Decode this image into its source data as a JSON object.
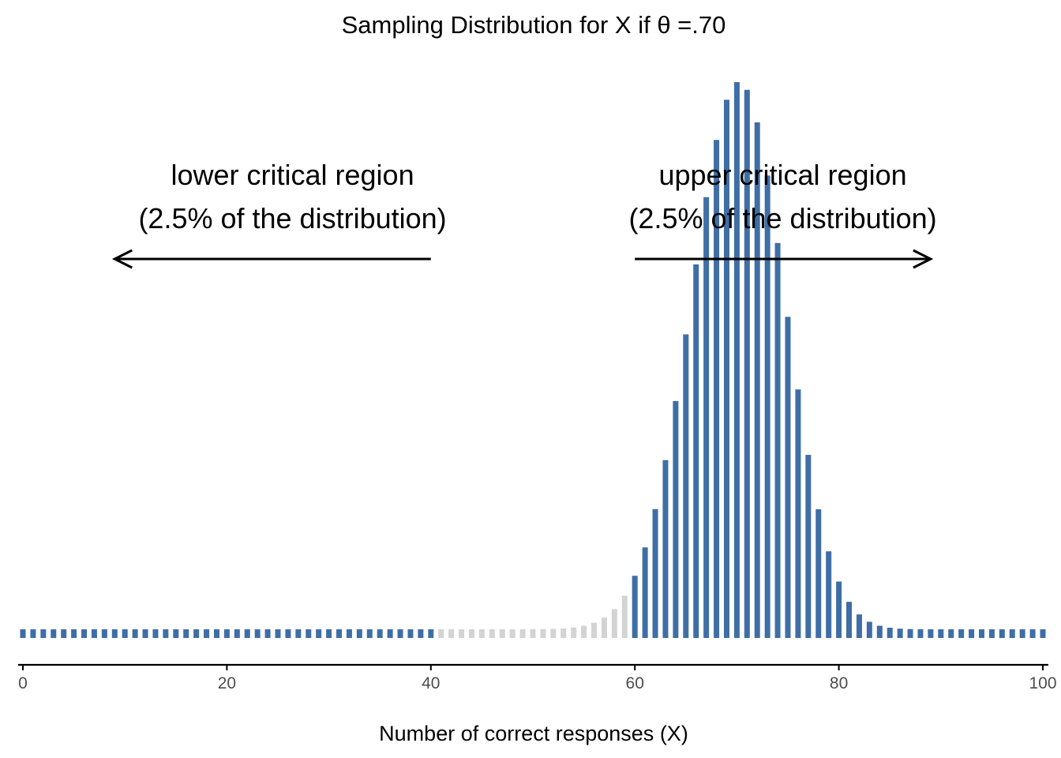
{
  "chart_data": {
    "type": "bar",
    "title": "Sampling Distribution for X if θ =.70",
    "xlabel": "Number of correct responses (X)",
    "ylabel": "",
    "xlim": [
      0,
      100
    ],
    "x_ticks": [
      "0",
      "20",
      "40",
      "60",
      "80",
      "100"
    ],
    "x_tick_values": [
      0,
      20,
      40,
      60,
      80,
      100
    ],
    "y_axis_shown": false,
    "grid": false,
    "n_trials": 100,
    "theta": 0.7,
    "series": [
      {
        "name": "",
        "values_rule": "binomial probability of X for X = 0..100, n = 100, theta = 0.70"
      }
    ],
    "colors": {
      "critical_region": "#3F6EA6",
      "non_critical_region": "#D3D3D3",
      "axis": "#000000",
      "tick_label": "#4D4D4D",
      "annotation": "#000000"
    },
    "critical_regions": {
      "lower_max_x": 40,
      "upper_min_x": 60
    },
    "annotations": {
      "lower": {
        "line1": "lower critical region",
        "line2": "(2.5% of the distribution)",
        "arrow_from_x": 40,
        "arrow_to_x": 9
      },
      "upper": {
        "line1": "upper critical region",
        "line2": "(2.5% of the distribution)",
        "arrow_from_x": 60,
        "arrow_to_x": 89
      }
    }
  }
}
